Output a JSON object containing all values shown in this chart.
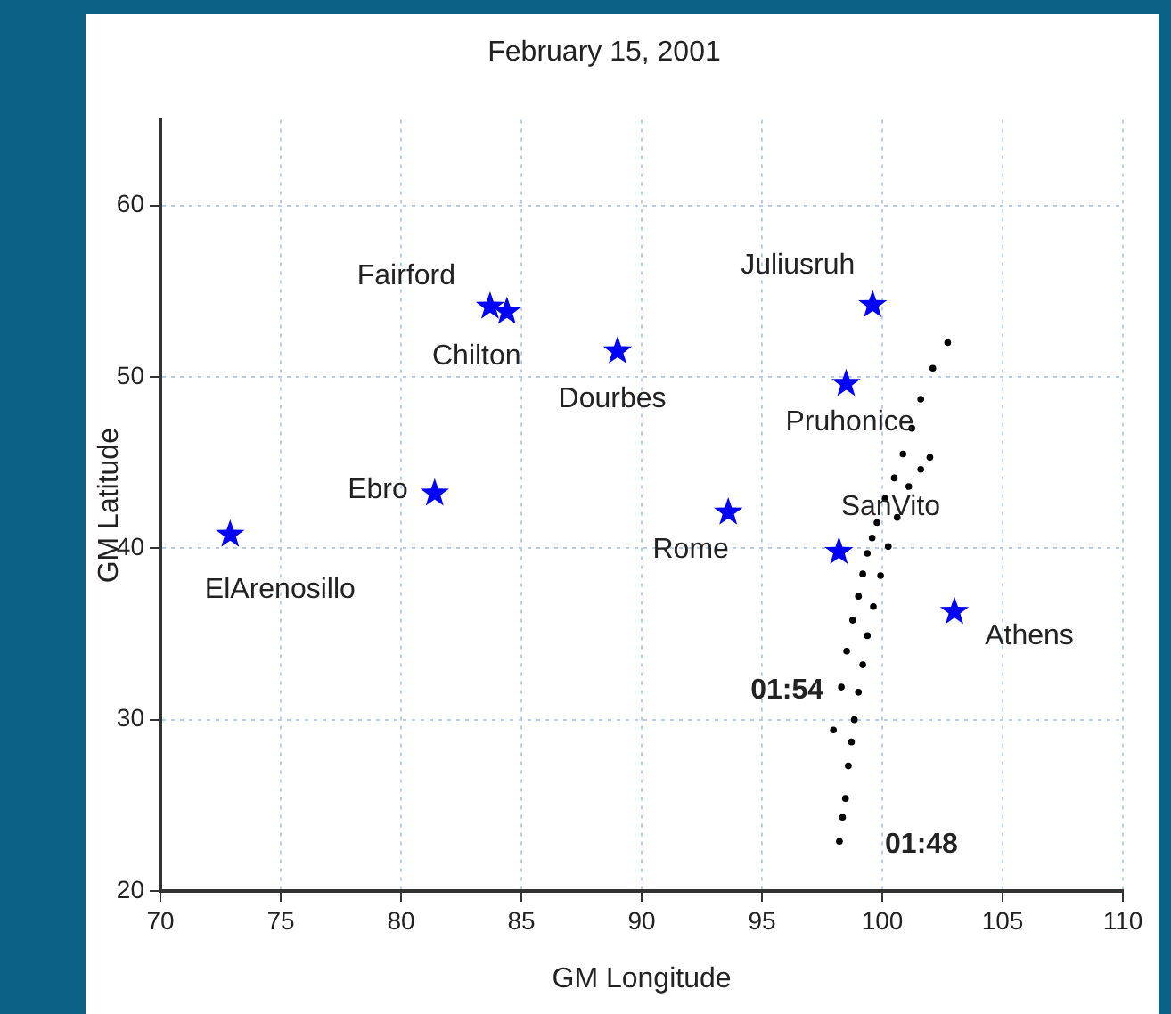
{
  "chart_data": {
    "type": "scatter",
    "title": "February 15, 2001",
    "xlabel": "GM Longitude",
    "ylabel": "GM Latitude",
    "xlim": [
      70,
      110
    ],
    "xticks": [
      70,
      75,
      80,
      85,
      90,
      95,
      100,
      105,
      110
    ],
    "ylim": [
      20,
      65
    ],
    "yticks": [
      20,
      30,
      40,
      50,
      60
    ],
    "grid": true,
    "legend": false,
    "series": [
      {
        "marker": "star",
        "color": "#0000ff",
        "x": [
          72.9,
          81.4,
          83.7,
          84.4,
          89.0,
          93.6,
          98.2,
          98.5,
          99.6,
          103.0
        ],
        "values": [
          40.8,
          43.2,
          54.1,
          53.8,
          51.5,
          42.1,
          39.8,
          49.6,
          54.2,
          36.3
        ]
      },
      {
        "marker": "circle",
        "color": "#000000",
        "x": [
          97.97,
          98.3,
          98.52,
          98.77,
          99.01,
          99.19,
          99.38,
          99.58,
          99.78,
          100.12,
          100.5,
          100.86,
          101.23,
          101.6,
          102.1,
          102.72
        ],
        "values": [
          29.4,
          31.9,
          34.0,
          35.8,
          37.2,
          38.5,
          39.7,
          40.6,
          41.5,
          42.9,
          44.1,
          45.5,
          47.0,
          48.7,
          50.5,
          52.0
        ]
      },
      {
        "marker": "circle",
        "color": "#000000",
        "x": [
          98.22,
          98.35,
          98.47,
          98.59,
          98.72,
          98.84,
          99.01,
          99.19,
          99.38,
          99.63,
          99.93,
          100.25,
          100.62,
          101.1,
          101.6,
          101.98
        ],
        "values": [
          22.9,
          24.3,
          25.4,
          27.3,
          28.7,
          30.0,
          31.6,
          33.2,
          34.9,
          36.6,
          38.4,
          40.1,
          41.8,
          43.6,
          44.6,
          45.3
        ]
      }
    ],
    "annotations": [
      {
        "text": "ElArenosillo",
        "x": 72.9,
        "y": 40.8
      },
      {
        "text": "Ebro",
        "x": 81.4,
        "y": 43.2
      },
      {
        "text": "Fairford",
        "x": 83.7,
        "y": 54.1
      },
      {
        "text": "Chilton",
        "x": 84.4,
        "y": 53.8
      },
      {
        "text": "Dourbes",
        "x": 89.0,
        "y": 51.5
      },
      {
        "text": "Rome",
        "x": 93.6,
        "y": 42.1
      },
      {
        "text": "SanVito",
        "x": 98.2,
        "y": 39.8
      },
      {
        "text": "Pruhonice",
        "x": 98.5,
        "y": 49.6
      },
      {
        "text": "Juliusruh",
        "x": 99.6,
        "y": 54.2
      },
      {
        "text": "Athens",
        "x": 103.0,
        "y": 36.3
      },
      {
        "text": "01:54",
        "x": 98.3,
        "y": 31.9
      },
      {
        "text": "01:48",
        "x": 98.22,
        "y": 22.9
      }
    ]
  }
}
